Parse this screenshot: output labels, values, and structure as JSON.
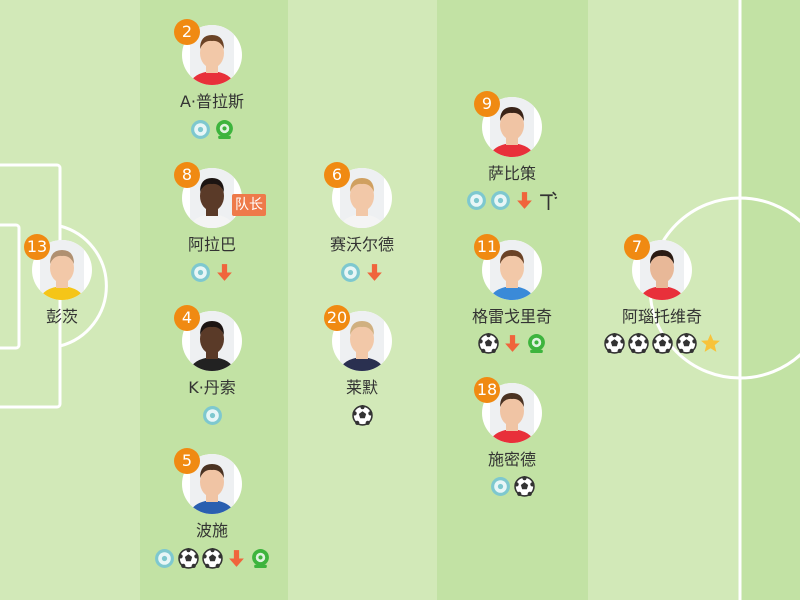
{
  "colors": {
    "stripe_light": "#d2e9b8",
    "stripe_dark": "#c2e2a4",
    "number_badge": "#f08a12",
    "captain": "#ee7a4a",
    "sub_arrow": "#f0643c",
    "assist": "#7ec8cf",
    "green_event": "#3db43d",
    "star": "#f8c33a"
  },
  "captain_label": "队长",
  "players": [
    {
      "number": "2",
      "name": "A·普拉斯",
      "col": 2,
      "row": 0,
      "kit": "#e8303a",
      "skin": "#f2c8a8",
      "hair": "#6b4326",
      "events": [
        "assist-icon",
        "green-event-icon"
      ]
    },
    {
      "number": "8",
      "name": "阿拉巴",
      "col": 2,
      "row": 2,
      "kit": "#f4f4f4",
      "skin": "#5a3a28",
      "hair": "#1c1412",
      "captain": true,
      "events": [
        "assist-icon",
        "sub-off-arrow-icon"
      ]
    },
    {
      "number": "4",
      "name": "K·丹索",
      "col": 2,
      "row": 4,
      "kit": "#222",
      "skin": "#5a3a28",
      "hair": "#1c1412",
      "events": [
        "assist-icon"
      ]
    },
    {
      "number": "5",
      "name": "波施",
      "col": 2,
      "row": 6,
      "kit": "#2a5fb0",
      "skin": "#f0c4a4",
      "hair": "#4a3222",
      "events": [
        "assist-icon",
        "goal-ball-icon",
        "goal-ball-icon",
        "sub-off-arrow-icon",
        "green-event-icon"
      ]
    },
    {
      "number": "13",
      "name": "彭茨",
      "col": 1,
      "row": 3,
      "kit": "#f5c518",
      "skin": "#f2c8a8",
      "hair": "#b09070",
      "events": []
    },
    {
      "number": "6",
      "name": "赛沃尔德",
      "col": 3,
      "row": 2,
      "kit": "#f4f4f4",
      "skin": "#f2c8a8",
      "hair": "#d0a060",
      "events": [
        "assist-icon",
        "sub-off-arrow-icon"
      ]
    },
    {
      "number": "20",
      "name": "莱默",
      "col": 3,
      "row": 4,
      "kit": "#2a3050",
      "skin": "#f2c8a8",
      "hair": "#d0b080",
      "events": [
        "goal-ball-icon"
      ]
    },
    {
      "number": "9",
      "name": "萨比策",
      "col": 4,
      "row": 1,
      "kit": "#e8303a",
      "skin": "#f0c4a4",
      "hair": "#3a2418",
      "events": [
        "assist-icon",
        "assist-icon",
        "sub-off-arrow-icon",
        "woodwork-icon"
      ]
    },
    {
      "number": "11",
      "name": "格雷戈里奇",
      "col": 4,
      "row": 3,
      "kit": "#3a8ad8",
      "skin": "#f2c8a8",
      "hair": "#6b4326",
      "events": [
        "goal-ball-icon",
        "sub-off-arrow-icon",
        "green-event-icon"
      ]
    },
    {
      "number": "18",
      "name": "施密德",
      "col": 4,
      "row": 5,
      "kit": "#e8303a",
      "skin": "#f0c4a4",
      "hair": "#4a3222",
      "events": [
        "assist-icon",
        "goal-ball-icon"
      ]
    },
    {
      "number": "7",
      "name": "阿瑙托维奇",
      "col": 5,
      "row": 3,
      "kit": "#e8303a",
      "skin": "#e8b898",
      "hair": "#2a1a12",
      "events": [
        "goal-ball-icon",
        "goal-ball-icon",
        "goal-ball-icon",
        "goal-ball-icon",
        "star-icon"
      ]
    }
  ]
}
